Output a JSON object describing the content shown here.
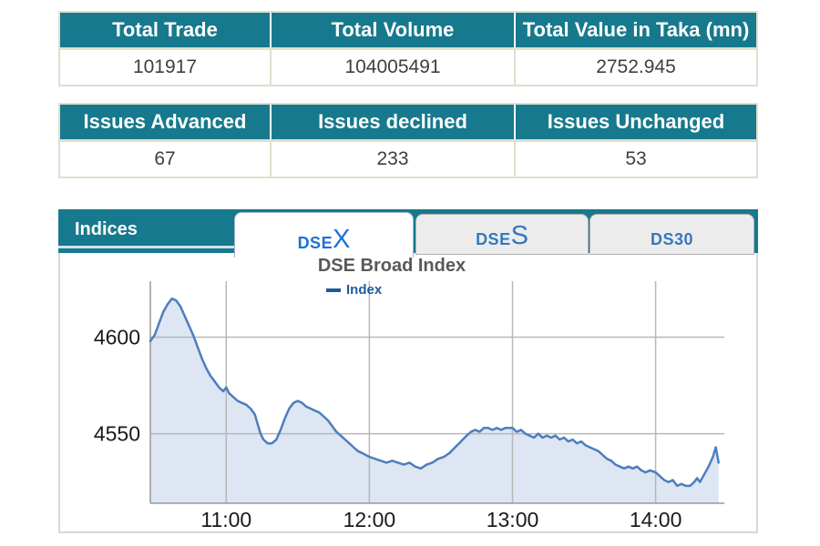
{
  "tables": {
    "summary": {
      "headers": [
        "Total Trade",
        "Total Volume",
        "Total Value in Taka (mn)"
      ],
      "values": [
        "101917",
        "104005491",
        "2752.945"
      ]
    },
    "issues": {
      "headers": [
        "Issues Advanced",
        "Issues declined",
        "Issues Unchanged"
      ],
      "values": [
        "67",
        "233",
        "53"
      ]
    }
  },
  "panel": {
    "label": "Indices",
    "tabs": [
      {
        "prefix": "DSE",
        "suffix": "X",
        "active": true
      },
      {
        "prefix": "DSE",
        "suffix": "S",
        "active": false
      },
      {
        "prefix": "DS30",
        "suffix": "",
        "active": false
      }
    ]
  },
  "chart_data": {
    "type": "area",
    "title": "DSE Broad Index",
    "xlabel": "",
    "ylabel": "",
    "legend_position": "top",
    "grid": true,
    "x_ticks": [
      {
        "t": 11,
        "label": "11:00"
      },
      {
        "t": 12,
        "label": "12:00"
      },
      {
        "t": 13,
        "label": "13:00"
      },
      {
        "t": 14,
        "label": "14:00"
      }
    ],
    "y_ticks": [
      4550,
      4600
    ],
    "x_range": [
      10.47,
      14.48
    ],
    "y_range": [
      4514,
      4629
    ],
    "line_color": "#4d7ebf",
    "fill_color": "#dde6f2",
    "series": [
      {
        "name": "Index",
        "points": [
          [
            10.47,
            4598
          ],
          [
            10.5,
            4601
          ],
          [
            10.53,
            4607
          ],
          [
            10.56,
            4613
          ],
          [
            10.59,
            4617
          ],
          [
            10.62,
            4620
          ],
          [
            10.65,
            4619
          ],
          [
            10.68,
            4616
          ],
          [
            10.71,
            4611
          ],
          [
            10.74,
            4606
          ],
          [
            10.77,
            4601
          ],
          [
            10.8,
            4595
          ],
          [
            10.83,
            4589
          ],
          [
            10.86,
            4584
          ],
          [
            10.89,
            4580
          ],
          [
            10.92,
            4577
          ],
          [
            10.95,
            4574
          ],
          [
            10.98,
            4572
          ],
          [
            11.0,
            4574
          ],
          [
            11.02,
            4571
          ],
          [
            11.05,
            4569
          ],
          [
            11.08,
            4567
          ],
          [
            11.11,
            4566
          ],
          [
            11.14,
            4565
          ],
          [
            11.17,
            4563
          ],
          [
            11.2,
            4560
          ],
          [
            11.22,
            4555
          ],
          [
            11.24,
            4550
          ],
          [
            11.26,
            4547
          ],
          [
            11.29,
            4545
          ],
          [
            11.32,
            4545
          ],
          [
            11.35,
            4547
          ],
          [
            11.38,
            4552
          ],
          [
            11.41,
            4558
          ],
          [
            11.44,
            4563
          ],
          [
            11.47,
            4566
          ],
          [
            11.5,
            4567
          ],
          [
            11.53,
            4566
          ],
          [
            11.56,
            4564
          ],
          [
            11.59,
            4563
          ],
          [
            11.62,
            4562
          ],
          [
            11.65,
            4561
          ],
          [
            11.68,
            4559
          ],
          [
            11.71,
            4557
          ],
          [
            11.74,
            4554
          ],
          [
            11.77,
            4551
          ],
          [
            11.8,
            4549
          ],
          [
            11.83,
            4547
          ],
          [
            11.86,
            4545
          ],
          [
            11.89,
            4543
          ],
          [
            11.92,
            4541
          ],
          [
            11.95,
            4540
          ],
          [
            12.0,
            4538
          ],
          [
            12.04,
            4537
          ],
          [
            12.08,
            4536
          ],
          [
            12.12,
            4535
          ],
          [
            12.16,
            4536
          ],
          [
            12.2,
            4535
          ],
          [
            12.24,
            4534
          ],
          [
            12.28,
            4535
          ],
          [
            12.32,
            4533
          ],
          [
            12.36,
            4532
          ],
          [
            12.4,
            4534
          ],
          [
            12.44,
            4535
          ],
          [
            12.48,
            4537
          ],
          [
            12.52,
            4538
          ],
          [
            12.56,
            4540
          ],
          [
            12.6,
            4543
          ],
          [
            12.64,
            4546
          ],
          [
            12.68,
            4549
          ],
          [
            12.71,
            4551
          ],
          [
            12.74,
            4552
          ],
          [
            12.77,
            4551
          ],
          [
            12.8,
            4553
          ],
          [
            12.83,
            4553
          ],
          [
            12.86,
            4552
          ],
          [
            12.89,
            4553
          ],
          [
            12.92,
            4552
          ],
          [
            12.95,
            4553
          ],
          [
            13.0,
            4553
          ],
          [
            13.03,
            4551
          ],
          [
            13.06,
            4552
          ],
          [
            13.09,
            4550
          ],
          [
            13.12,
            4549
          ],
          [
            13.15,
            4548
          ],
          [
            13.18,
            4550
          ],
          [
            13.21,
            4548
          ],
          [
            13.24,
            4549
          ],
          [
            13.27,
            4548
          ],
          [
            13.3,
            4549
          ],
          [
            13.33,
            4547
          ],
          [
            13.36,
            4548
          ],
          [
            13.39,
            4546
          ],
          [
            13.42,
            4547
          ],
          [
            13.45,
            4545
          ],
          [
            13.48,
            4546
          ],
          [
            13.51,
            4544
          ],
          [
            13.54,
            4543
          ],
          [
            13.57,
            4542
          ],
          [
            13.6,
            4541
          ],
          [
            13.63,
            4539
          ],
          [
            13.66,
            4537
          ],
          [
            13.69,
            4536
          ],
          [
            13.72,
            4534
          ],
          [
            13.75,
            4533
          ],
          [
            13.78,
            4532
          ],
          [
            13.81,
            4533
          ],
          [
            13.84,
            4532
          ],
          [
            13.87,
            4533
          ],
          [
            13.9,
            4531
          ],
          [
            13.93,
            4530
          ],
          [
            13.96,
            4531
          ],
          [
            14.0,
            4530
          ],
          [
            14.03,
            4528
          ],
          [
            14.06,
            4526
          ],
          [
            14.09,
            4525
          ],
          [
            14.12,
            4526
          ],
          [
            14.15,
            4523
          ],
          [
            14.18,
            4524
          ],
          [
            14.21,
            4523
          ],
          [
            14.24,
            4523
          ],
          [
            14.27,
            4525
          ],
          [
            14.29,
            4527
          ],
          [
            14.31,
            4525
          ],
          [
            14.34,
            4529
          ],
          [
            14.37,
            4533
          ],
          [
            14.4,
            4538
          ],
          [
            14.42,
            4543
          ],
          [
            14.44,
            4535
          ]
        ]
      }
    ]
  },
  "colors": {
    "teal": "#17798d",
    "teal_underline": "#cfe4e9",
    "tbl_border": "#e0dfd0",
    "tab_text_active": "#1e70d8",
    "tab_text": "#3579bb",
    "line": "#4d7ebf",
    "fill": "#dde6f2",
    "legend": "#1f5a9e",
    "title_text": "#58595b",
    "grid": "#b7b7b7",
    "axis": "#9a9a9a"
  }
}
